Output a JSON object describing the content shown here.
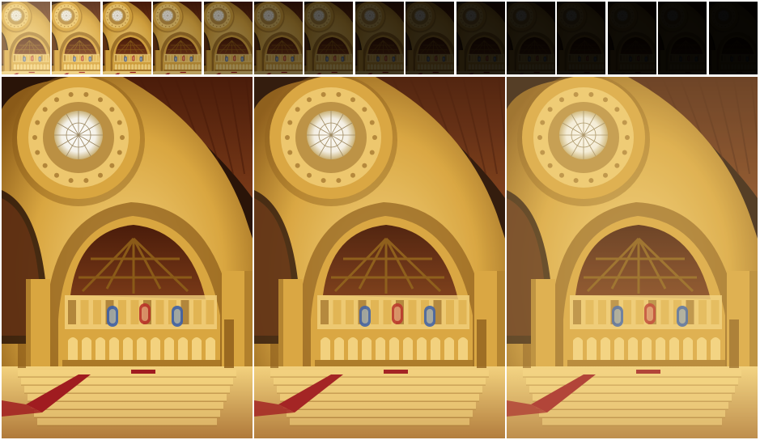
{
  "figure": {
    "description_free": true,
    "exposure_strip": {
      "count": 15,
      "brightness": [
        1.35,
        1.15,
        0.95,
        0.78,
        0.62,
        0.48,
        0.36,
        0.27,
        0.2,
        0.15,
        0.11,
        0.085,
        0.065,
        0.05,
        0.04
      ]
    },
    "renders": [
      {
        "id": "render-left",
        "exposure": 1.0,
        "saturation": 1.0,
        "tint": "#f2c46a"
      },
      {
        "id": "render-middle",
        "exposure": 1.05,
        "saturation": 0.9,
        "tint": "#f5cf7a"
      },
      {
        "id": "render-right",
        "exposure": 1.25,
        "saturation": 0.75,
        "tint": "#f7dc98"
      }
    ],
    "palette": {
      "gold": "#d9a640",
      "gold_light": "#f3d27e",
      "gold_dark": "#8a5a18",
      "wood": "#7a3a18",
      "wood_dark": "#4a1c0a",
      "shadow": "#2a1408",
      "carpet": "#a01c20",
      "floor": "#b07a3a",
      "skylight": "#f4f1e8",
      "glass_blue": "#3b5fa8",
      "glass_red": "#b8322a"
    }
  }
}
